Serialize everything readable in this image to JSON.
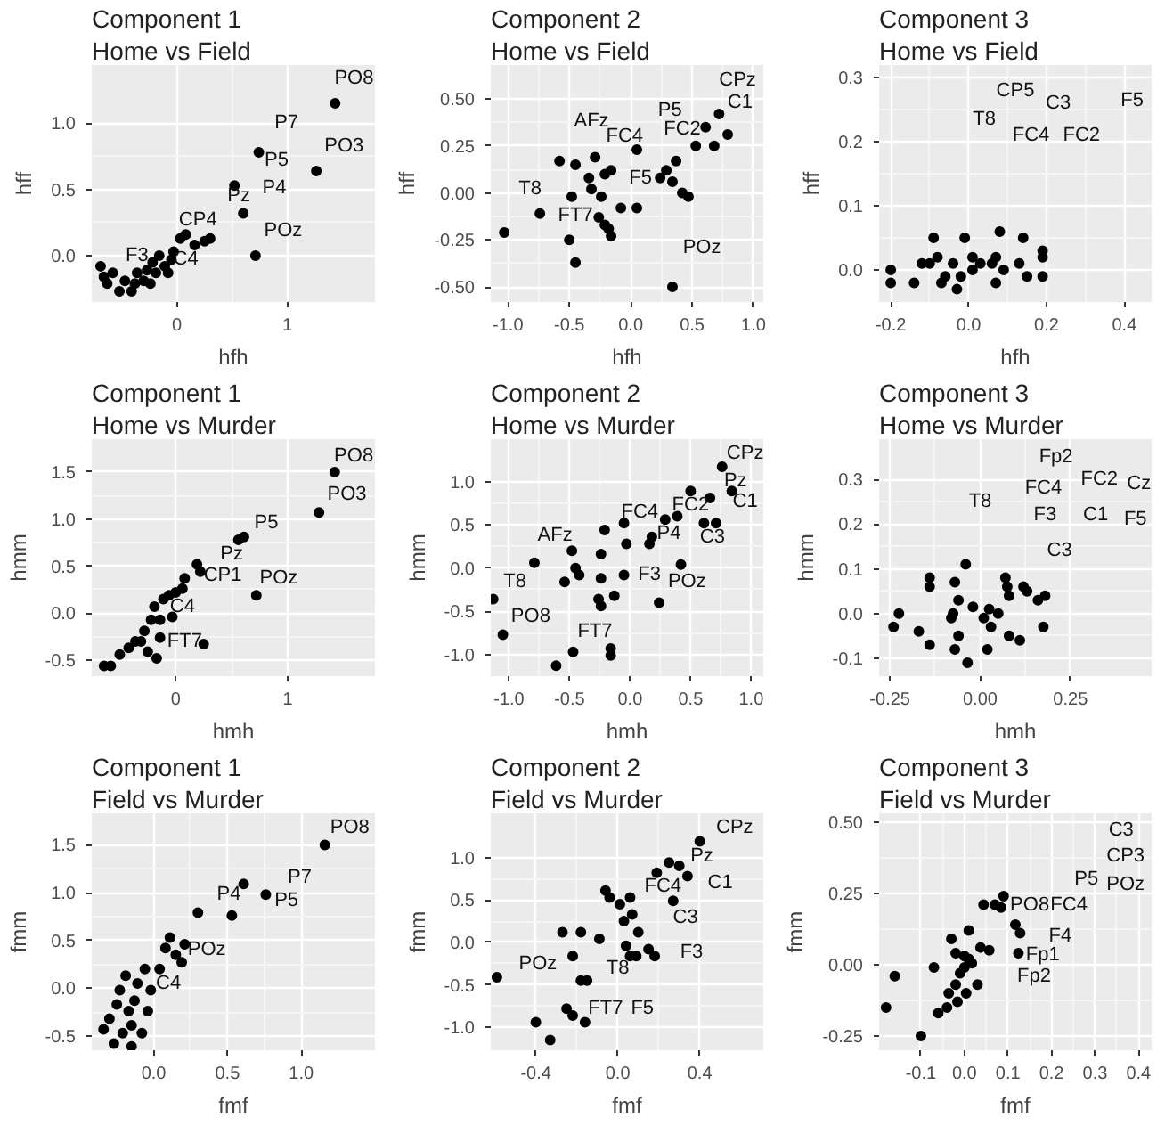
{
  "chart_data": [
    {
      "type": "scatter",
      "title": "Component 1",
      "subtitle": "Home vs Field",
      "xlabel": "hfh",
      "ylabel": "hff",
      "color": "#000000",
      "marker": "circle",
      "grid": true,
      "xlim": [
        -0.77,
        1.79
      ],
      "ylim": [
        -0.35,
        1.44
      ],
      "xticks": [
        {
          "value": 0,
          "label": "0"
        },
        {
          "value": 1,
          "label": "1"
        }
      ],
      "yticks": [
        {
          "value": 0,
          "label": "0.0"
        },
        {
          "value": 0.5,
          "label": "0.5"
        },
        {
          "value": 1,
          "label": "1.0"
        }
      ],
      "x": [
        -0.69,
        -0.66,
        -0.63,
        -0.58,
        -0.52,
        -0.47,
        -0.41,
        -0.38,
        -0.36,
        -0.3,
        -0.27,
        -0.24,
        -0.22,
        -0.19,
        -0.16,
        -0.11,
        -0.08,
        -0.05,
        -0.03,
        0.03,
        0.08,
        0.16,
        0.25,
        0.3,
        0.52,
        0.6,
        0.71,
        0.74,
        1.26,
        1.43
      ],
      "values": [
        -0.08,
        -0.16,
        -0.21,
        -0.13,
        -0.27,
        -0.19,
        -0.27,
        -0.21,
        -0.13,
        -0.19,
        -0.11,
        -0.21,
        -0.05,
        -0.13,
        0.0,
        -0.08,
        -0.13,
        -0.03,
        0.03,
        0.13,
        0.16,
        0.08,
        0.11,
        0.13,
        0.53,
        0.32,
        0.0,
        0.78,
        0.64,
        1.15
      ],
      "annotations": [
        "PO8",
        "P7",
        "P5",
        "PO3",
        "Pz",
        "P4",
        "CP4",
        "POz",
        "F3",
        "C4"
      ]
    },
    {
      "type": "scatter",
      "title": "Component 2",
      "subtitle": "Home vs Field",
      "xlabel": "hfh",
      "ylabel": "hff",
      "color": "#000000",
      "marker": "circle",
      "grid": true,
      "xlim": [
        -1.14,
        1.08
      ],
      "ylim": [
        -0.58,
        0.68
      ],
      "xticks": [
        {
          "value": -1,
          "label": "-1.0"
        },
        {
          "value": -0.5,
          "label": "-0.5"
        },
        {
          "value": 0,
          "label": "0.0"
        },
        {
          "value": 0.5,
          "label": "0.5"
        },
        {
          "value": 1,
          "label": "1.0"
        }
      ],
      "yticks": [
        {
          "value": -0.5,
          "label": "-0.50"
        },
        {
          "value": -0.25,
          "label": "-0.25"
        },
        {
          "value": 0,
          "label": "0.00"
        },
        {
          "value": 0.25,
          "label": "0.25"
        },
        {
          "value": 0.5,
          "label": "0.50"
        }
      ],
      "x": [
        -1.03,
        -0.74,
        -0.58,
        -0.45,
        -0.48,
        -0.5,
        -0.45,
        -0.29,
        -0.32,
        -0.34,
        -0.24,
        -0.21,
        -0.16,
        -0.26,
        -0.21,
        -0.16,
        -0.18,
        -0.08,
        0.05,
        0.05,
        0.24,
        0.29,
        0.34,
        0.37,
        0.42,
        0.47,
        0.53,
        0.61,
        0.68,
        0.72,
        0.79,
        0.34
      ],
      "values": [
        -0.21,
        -0.11,
        0.17,
        0.15,
        -0.02,
        -0.25,
        -0.37,
        0.19,
        0.02,
        0.08,
        -0.02,
        0.1,
        0.12,
        -0.13,
        -0.17,
        -0.23,
        -0.19,
        -0.08,
        -0.08,
        0.23,
        0.08,
        0.12,
        0.06,
        0.17,
        0.0,
        -0.02,
        0.25,
        0.35,
        0.25,
        0.42,
        0.31,
        -0.5
      ],
      "annotations": [
        "CPz",
        "C1",
        "P5",
        "AFz",
        "FC4",
        "FC2",
        "F5",
        "T8",
        "FT7",
        "POz"
      ]
    },
    {
      "type": "scatter",
      "title": "Component 3",
      "subtitle": "Home vs Field",
      "xlabel": "hfh",
      "ylabel": "hff",
      "color": "#000000",
      "marker": "circle",
      "grid": true,
      "xlim": [
        -0.23,
        0.47
      ],
      "ylim": [
        -0.05,
        0.32
      ],
      "xticks": [
        {
          "value": -0.2,
          "label": "-0.2"
        },
        {
          "value": 0,
          "label": "0.0"
        },
        {
          "value": 0.2,
          "label": "0.2"
        },
        {
          "value": 0.4,
          "label": "0.4"
        }
      ],
      "yticks": [
        {
          "value": 0,
          "label": "0.0"
        },
        {
          "value": 0.1,
          "label": "0.1"
        },
        {
          "value": 0.2,
          "label": "0.2"
        },
        {
          "value": 0.3,
          "label": "0.3"
        }
      ],
      "x": [
        -0.2,
        -0.2,
        -0.14,
        -0.12,
        -0.1,
        -0.09,
        -0.08,
        -0.07,
        -0.06,
        -0.04,
        -0.03,
        -0.02,
        -0.01,
        0.01,
        0.01,
        0.03,
        0.06,
        0.07,
        0.07,
        0.08,
        0.09,
        0.13,
        0.14,
        0.15,
        0.19,
        0.19,
        0.19
      ],
      "values": [
        0.0,
        -0.02,
        -0.02,
        0.01,
        0.01,
        0.05,
        0.02,
        -0.02,
        -0.01,
        0.01,
        -0.03,
        -0.01,
        0.05,
        0.02,
        0.0,
        0.01,
        0.01,
        -0.02,
        0.02,
        0.06,
        0.0,
        0.01,
        0.05,
        -0.01,
        0.03,
        0.02,
        -0.01
      ],
      "annotations": [
        "CP5",
        "C3",
        "T8",
        "FC4",
        "FC2",
        "F5"
      ]
    },
    {
      "type": "scatter",
      "title": "Component 1",
      "subtitle": "Home vs Murder",
      "xlabel": "hmh",
      "ylabel": "hmm",
      "color": "#000000",
      "marker": "circle",
      "grid": true,
      "xlim": [
        -0.75,
        1.78
      ],
      "ylim": [
        -0.67,
        1.85
      ],
      "xticks": [
        {
          "value": 0,
          "label": "0"
        },
        {
          "value": 1,
          "label": "1"
        }
      ],
      "yticks": [
        {
          "value": -0.5,
          "label": "-0.5"
        },
        {
          "value": 0,
          "label": "0.0"
        },
        {
          "value": 0.5,
          "label": "0.5"
        },
        {
          "value": 1,
          "label": "1.0"
        },
        {
          "value": 1.5,
          "label": "1.5"
        }
      ],
      "x": [
        -0.64,
        -0.58,
        -0.5,
        -0.42,
        -0.36,
        -0.31,
        -0.28,
        -0.25,
        -0.22,
        -0.19,
        -0.17,
        -0.14,
        -0.11,
        -0.14,
        -0.06,
        -0.03,
        0.0,
        0.06,
        0.08,
        0.19,
        0.22,
        0.25,
        0.56,
        0.61,
        0.72,
        1.28,
        1.42
      ],
      "values": [
        -0.56,
        -0.56,
        -0.44,
        -0.37,
        -0.3,
        -0.3,
        -0.19,
        -0.41,
        -0.07,
        0.07,
        -0.48,
        -0.26,
        0.15,
        -0.07,
        0.19,
        -0.04,
        0.22,
        0.26,
        0.37,
        0.52,
        0.44,
        -0.33,
        0.78,
        0.81,
        0.19,
        1.07,
        1.5
      ],
      "annotations": [
        "PO8",
        "PO3",
        "P5",
        "Pz",
        "POz",
        "CP1",
        "C4",
        "FT7"
      ]
    },
    {
      "type": "scatter",
      "title": "Component 2",
      "subtitle": "Home vs Murder",
      "xlabel": "hmh",
      "ylabel": "hmm",
      "color": "#000000",
      "marker": "circle",
      "grid": true,
      "xlim": [
        -1.15,
        1.1
      ],
      "ylim": [
        -1.25,
        1.49
      ],
      "xticks": [
        {
          "value": -1,
          "label": "-1.0"
        },
        {
          "value": -0.5,
          "label": "-0.5"
        },
        {
          "value": 0,
          "label": "0.0"
        },
        {
          "value": 0.5,
          "label": "0.5"
        },
        {
          "value": 1,
          "label": "1.0"
        }
      ],
      "yticks": [
        {
          "value": -1,
          "label": "-1.0"
        },
        {
          "value": -0.5,
          "label": "-0.5"
        },
        {
          "value": 0,
          "label": "0.0"
        },
        {
          "value": 0.5,
          "label": "0.5"
        },
        {
          "value": 1,
          "label": "1.0"
        }
      ],
      "x": [
        -1.13,
        -1.05,
        -0.79,
        -0.61,
        -0.54,
        -0.48,
        -0.47,
        -0.45,
        -0.42,
        -0.24,
        -0.21,
        -0.24,
        -0.26,
        -0.24,
        -0.13,
        -0.16,
        -0.16,
        -0.05,
        -0.03,
        -0.05,
        0.16,
        0.18,
        0.24,
        0.29,
        0.42,
        0.39,
        0.5,
        0.61,
        0.66,
        0.71,
        0.76,
        0.84
      ],
      "values": [
        -0.36,
        -0.77,
        0.06,
        -1.13,
        -0.16,
        0.2,
        -0.97,
        0.0,
        -0.08,
        0.16,
        0.44,
        -0.12,
        -0.36,
        -0.44,
        -0.32,
        -0.93,
        -1.01,
        0.52,
        0.28,
        -0.08,
        0.28,
        0.36,
        -0.4,
        0.56,
        0.04,
        0.6,
        0.89,
        0.52,
        0.81,
        0.52,
        1.17,
        0.89
      ],
      "annotations": [
        "CPz",
        "Pz",
        "C1",
        "FC4",
        "FC2",
        "P4",
        "C3",
        "AFz",
        "F3",
        "POz",
        "FT7",
        "T8",
        "PO8"
      ]
    },
    {
      "type": "scatter",
      "title": "Component 3",
      "subtitle": "Home vs Murder",
      "xlabel": "hmh",
      "ylabel": "hmm",
      "color": "#000000",
      "marker": "circle",
      "grid": true,
      "xlim": [
        -0.28,
        0.475
      ],
      "ylim": [
        -0.14,
        0.39
      ],
      "xticks": [
        {
          "value": -0.25,
          "label": "-0.25"
        },
        {
          "value": 0,
          "label": "0.00"
        },
        {
          "value": 0.25,
          "label": "0.25"
        }
      ],
      "yticks": [
        {
          "value": -0.1,
          "label": "-0.1"
        },
        {
          "value": 0,
          "label": "0.0"
        },
        {
          "value": 0.1,
          "label": "0.1"
        },
        {
          "value": 0.2,
          "label": "0.2"
        },
        {
          "value": 0.3,
          "label": "0.3"
        }
      ],
      "x": [
        -0.24,
        -0.225,
        -0.17,
        -0.14,
        -0.14,
        -0.14,
        -0.08,
        -0.075,
        -0.07,
        -0.07,
        -0.06,
        -0.06,
        -0.04,
        -0.035,
        -0.02,
        0.01,
        0.02,
        0.025,
        0.03,
        0.05,
        0.07,
        0.075,
        0.08,
        0.08,
        0.11,
        0.12,
        0.13,
        0.16,
        0.175,
        0.18
      ],
      "values": [
        -0.03,
        0.0,
        -0.04,
        0.08,
        0.06,
        -0.07,
        -0.01,
        0.0,
        0.07,
        -0.08,
        0.03,
        -0.05,
        0.11,
        -0.11,
        0.015,
        -0.01,
        -0.08,
        0.01,
        -0.03,
        0.0,
        0.08,
        0.06,
        0.04,
        -0.05,
        -0.06,
        0.06,
        0.05,
        0.03,
        -0.03,
        0.04
      ],
      "annotations": [
        "Fp2",
        "FC4",
        "FC2",
        "Cz",
        "T8",
        "F3",
        "C1",
        "F5",
        "C3"
      ]
    },
    {
      "type": "scatter",
      "title": "Component 1",
      "subtitle": "Field vs Murder",
      "xlabel": "fmf",
      "ylabel": "fmm",
      "color": "#000000",
      "marker": "circle",
      "grid": true,
      "xlim": [
        -0.42,
        1.5
      ],
      "ylim": [
        -0.65,
        1.83
      ],
      "xticks": [
        {
          "value": 0,
          "label": "0.0"
        },
        {
          "value": 0.5,
          "label": "0.5"
        },
        {
          "value": 1,
          "label": "1.0"
        }
      ],
      "yticks": [
        {
          "value": -0.5,
          "label": "-0.5"
        },
        {
          "value": 0,
          "label": "0.0"
        },
        {
          "value": 0.5,
          "label": "0.5"
        },
        {
          "value": 1,
          "label": "1.0"
        },
        {
          "value": 1.5,
          "label": "1.5"
        }
      ],
      "x": [
        -0.34,
        -0.3,
        -0.27,
        -0.25,
        -0.23,
        -0.21,
        -0.19,
        -0.17,
        -0.15,
        -0.13,
        -0.11,
        -0.08,
        -0.06,
        -0.04,
        -0.02,
        0.04,
        0.08,
        0.11,
        0.15,
        0.19,
        0.21,
        0.3,
        0.53,
        0.61,
        0.76,
        1.16,
        -0.15
      ],
      "values": [
        -0.43,
        -0.32,
        -0.58,
        -0.17,
        -0.02,
        -0.47,
        0.13,
        -0.24,
        -0.39,
        -0.13,
        0.05,
        -0.47,
        0.2,
        -0.24,
        -0.02,
        0.2,
        0.42,
        0.53,
        0.35,
        0.27,
        0.46,
        0.79,
        0.76,
        1.09,
        0.98,
        1.5,
        -0.61
      ],
      "annotations": [
        "PO8",
        "P7",
        "P4",
        "P5",
        "POz",
        "C4"
      ]
    },
    {
      "type": "scatter",
      "title": "Component 2",
      "subtitle": "Field vs Murder",
      "xlabel": "fmf",
      "ylabel": "fmm",
      "color": "#000000",
      "marker": "circle",
      "grid": true,
      "xlim": [
        -0.62,
        0.71
      ],
      "ylim": [
        -1.27,
        1.52
      ],
      "xticks": [
        {
          "value": -0.4,
          "label": "-0.4"
        },
        {
          "value": 0,
          "label": "0.0"
        },
        {
          "value": 0.4,
          "label": "0.4"
        }
      ],
      "yticks": [
        {
          "value": -1,
          "label": "-1.0"
        },
        {
          "value": -0.5,
          "label": "-0.5"
        },
        {
          "value": 0,
          "label": "0.0"
        },
        {
          "value": 0.5,
          "label": "0.5"
        },
        {
          "value": 1,
          "label": "1.0"
        }
      ],
      "x": [
        -0.59,
        -0.4,
        -0.33,
        -0.27,
        -0.22,
        -0.25,
        -0.22,
        -0.18,
        -0.16,
        -0.18,
        -0.15,
        -0.09,
        -0.06,
        -0.04,
        0.01,
        0.03,
        0.06,
        0.07,
        0.04,
        0.06,
        0.09,
        0.1,
        0.15,
        0.18,
        0.19,
        0.25,
        0.27,
        0.3,
        0.34,
        0.4
      ],
      "values": [
        -0.41,
        -0.94,
        -1.15,
        0.12,
        -0.16,
        -0.78,
        -0.86,
        -0.45,
        -0.94,
        0.12,
        -0.45,
        0.04,
        0.61,
        0.53,
        0.45,
        0.25,
        0.53,
        0.33,
        -0.04,
        -0.16,
        -0.16,
        0.12,
        -0.08,
        -0.16,
        0.82,
        0.94,
        0.49,
        0.9,
        0.78,
        1.19
      ],
      "annotations": [
        "CPz",
        "Pz",
        "C1",
        "FC4",
        "C3",
        "F3",
        "T8",
        "POz",
        "FT7",
        "F5"
      ]
    },
    {
      "type": "scatter",
      "title": "Component 3",
      "subtitle": "Field vs Murder",
      "xlabel": "fmf",
      "ylabel": "fmm",
      "color": "#000000",
      "marker": "circle",
      "grid": true,
      "xlim": [
        -0.196,
        0.43
      ],
      "ylim": [
        -0.3,
        0.53
      ],
      "xticks": [
        {
          "value": -0.1,
          "label": "-0.1"
        },
        {
          "value": 0,
          "label": "0.0"
        },
        {
          "value": 0.1,
          "label": "0.1"
        },
        {
          "value": 0.2,
          "label": "0.2"
        },
        {
          "value": 0.3,
          "label": "0.3"
        },
        {
          "value": 0.4,
          "label": "0.4"
        }
      ],
      "yticks": [
        {
          "value": -0.25,
          "label": "-0.25"
        },
        {
          "value": 0,
          "label": "0.00"
        },
        {
          "value": 0.25,
          "label": "0.25"
        },
        {
          "value": 0.5,
          "label": "0.50"
        }
      ],
      "x": [
        -0.18,
        -0.16,
        -0.1,
        -0.07,
        -0.06,
        -0.04,
        -0.036,
        -0.03,
        -0.02,
        -0.02,
        -0.016,
        -0.01,
        0.0,
        0.0,
        0.004,
        0.01,
        0.017,
        0.01,
        0.03,
        0.037,
        0.044,
        0.057,
        0.07,
        0.084,
        0.09,
        0.117,
        0.128,
        0.124
      ],
      "values": [
        -0.15,
        -0.04,
        -0.25,
        -0.01,
        -0.17,
        -0.15,
        -0.1,
        0.09,
        -0.07,
        0.04,
        -0.13,
        -0.03,
        -0.01,
        0.03,
        -0.1,
        0.02,
        0.005,
        0.12,
        -0.07,
        0.06,
        0.21,
        0.05,
        0.21,
        0.2,
        0.24,
        0.14,
        0.11,
        0.04
      ],
      "annotations": [
        "C3",
        "CP3",
        "P5",
        "POz",
        "PO8",
        "FC4",
        "F4",
        "Fp1",
        "Fp2"
      ]
    }
  ]
}
